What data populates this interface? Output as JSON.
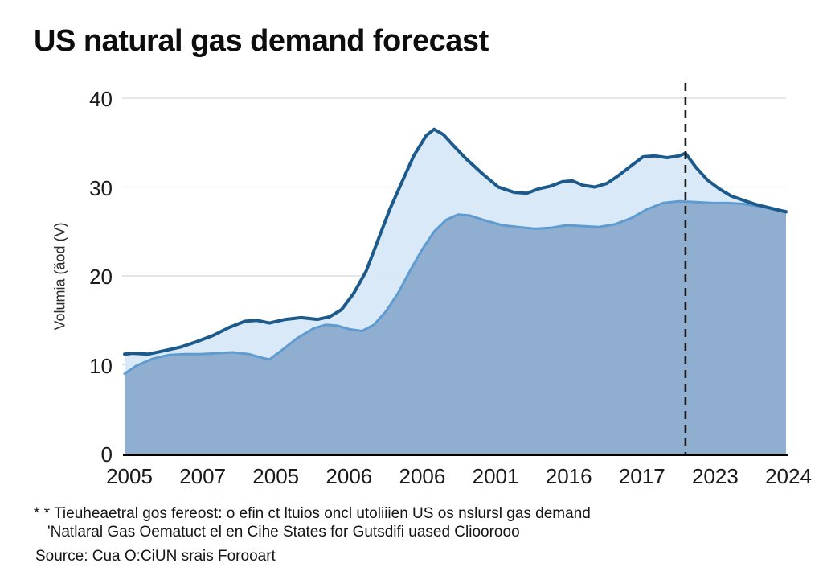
{
  "title": "US natural gas demand forecast",
  "y_axis": {
    "label": "Volumia (ăod (V)",
    "ticks": [
      {
        "label": "40",
        "value": 40
      },
      {
        "label": "30",
        "value": 30
      },
      {
        "label": "20",
        "value": 20
      },
      {
        "label": "10",
        "value": 10
      },
      {
        "label": "0",
        "value": 0
      }
    ]
  },
  "x_axis": {
    "ticks": [
      "2005",
      "2007",
      "2005",
      "2006",
      "2006",
      "2001",
      "2016",
      "2017",
      "2023",
      "2024"
    ]
  },
  "footnote_line1": "* * Tieuheaetral gos fereost: o efin ct ltuios oncl utoliiien US os nslursl gas demand",
  "footnote_line2": "'Natlaral Gas Oematuct el en Cihe States for Gutsdifi uased Clioorooo",
  "source": "Source: Cua O:CiUN srais Forooart",
  "colors": {
    "upper_line": "#1d5a8c",
    "upper_fill": "#d6e7f6",
    "lower_line": "#5e9bd1",
    "lower_fill": "#8aa9cc",
    "gridline": "#d8d8d8",
    "axis": "#000000",
    "divider": "#1a1a1a",
    "text": "#1a1a1a"
  },
  "chart_data": {
    "type": "area",
    "title": "US natural gas demand forecast",
    "ylabel": "Volumia (ăod (V)",
    "ylim": [
      0,
      40
    ],
    "y_ticks": [
      0,
      10,
      20,
      30,
      40
    ],
    "x_tick_labels": [
      "2005",
      "2007",
      "2005",
      "2006",
      "2006",
      "2001",
      "2016",
      "2017",
      "2023",
      "2024"
    ],
    "grid": "horizontal",
    "legend": "none",
    "forecast_divider_x_frac": 0.848,
    "series": [
      {
        "name": "upper",
        "points": [
          [
            0.0,
            11.2
          ],
          [
            0.012,
            11.3
          ],
          [
            0.036,
            11.2
          ],
          [
            0.061,
            11.6
          ],
          [
            0.085,
            12.0
          ],
          [
            0.109,
            12.6
          ],
          [
            0.134,
            13.3
          ],
          [
            0.158,
            14.2
          ],
          [
            0.182,
            14.9
          ],
          [
            0.2,
            15.0
          ],
          [
            0.219,
            14.7
          ],
          [
            0.243,
            15.1
          ],
          [
            0.267,
            15.3
          ],
          [
            0.292,
            15.1
          ],
          [
            0.31,
            15.4
          ],
          [
            0.328,
            16.2
          ],
          [
            0.346,
            18.0
          ],
          [
            0.365,
            20.5
          ],
          [
            0.383,
            24.0
          ],
          [
            0.401,
            27.5
          ],
          [
            0.419,
            30.5
          ],
          [
            0.437,
            33.5
          ],
          [
            0.456,
            35.8
          ],
          [
            0.468,
            36.5
          ],
          [
            0.482,
            35.9
          ],
          [
            0.498,
            34.6
          ],
          [
            0.516,
            33.2
          ],
          [
            0.541,
            31.5
          ],
          [
            0.565,
            30.0
          ],
          [
            0.589,
            29.4
          ],
          [
            0.608,
            29.3
          ],
          [
            0.626,
            29.8
          ],
          [
            0.644,
            30.1
          ],
          [
            0.662,
            30.6
          ],
          [
            0.677,
            30.7
          ],
          [
            0.693,
            30.2
          ],
          [
            0.711,
            30.0
          ],
          [
            0.729,
            30.4
          ],
          [
            0.747,
            31.3
          ],
          [
            0.766,
            32.4
          ],
          [
            0.784,
            33.4
          ],
          [
            0.802,
            33.5
          ],
          [
            0.82,
            33.3
          ],
          [
            0.838,
            33.5
          ],
          [
            0.848,
            33.8
          ],
          [
            0.864,
            32.2
          ],
          [
            0.881,
            30.8
          ],
          [
            0.899,
            29.8
          ],
          [
            0.917,
            29.0
          ],
          [
            0.936,
            28.5
          ],
          [
            0.956,
            28.0
          ],
          [
            0.978,
            27.6
          ],
          [
            1.0,
            27.2
          ]
        ]
      },
      {
        "name": "lower",
        "points": [
          [
            0.0,
            9.0
          ],
          [
            0.018,
            9.9
          ],
          [
            0.043,
            10.7
          ],
          [
            0.067,
            11.1
          ],
          [
            0.091,
            11.2
          ],
          [
            0.115,
            11.2
          ],
          [
            0.14,
            11.3
          ],
          [
            0.164,
            11.4
          ],
          [
            0.188,
            11.2
          ],
          [
            0.207,
            10.8
          ],
          [
            0.219,
            10.6
          ],
          [
            0.237,
            11.6
          ],
          [
            0.261,
            13.0
          ],
          [
            0.286,
            14.1
          ],
          [
            0.304,
            14.5
          ],
          [
            0.322,
            14.4
          ],
          [
            0.34,
            14.0
          ],
          [
            0.359,
            13.8
          ],
          [
            0.377,
            14.5
          ],
          [
            0.395,
            16.0
          ],
          [
            0.413,
            18.0
          ],
          [
            0.431,
            20.5
          ],
          [
            0.45,
            23.0
          ],
          [
            0.468,
            25.0
          ],
          [
            0.486,
            26.3
          ],
          [
            0.504,
            26.9
          ],
          [
            0.522,
            26.8
          ],
          [
            0.547,
            26.2
          ],
          [
            0.571,
            25.7
          ],
          [
            0.595,
            25.5
          ],
          [
            0.62,
            25.3
          ],
          [
            0.644,
            25.4
          ],
          [
            0.668,
            25.7
          ],
          [
            0.693,
            25.6
          ],
          [
            0.717,
            25.5
          ],
          [
            0.741,
            25.8
          ],
          [
            0.766,
            26.5
          ],
          [
            0.79,
            27.5
          ],
          [
            0.814,
            28.2
          ],
          [
            0.838,
            28.4
          ],
          [
            0.864,
            28.3
          ],
          [
            0.888,
            28.2
          ],
          [
            0.912,
            28.2
          ],
          [
            0.936,
            28.1
          ],
          [
            0.96,
            27.8
          ],
          [
            1.0,
            27.3
          ]
        ]
      }
    ]
  }
}
